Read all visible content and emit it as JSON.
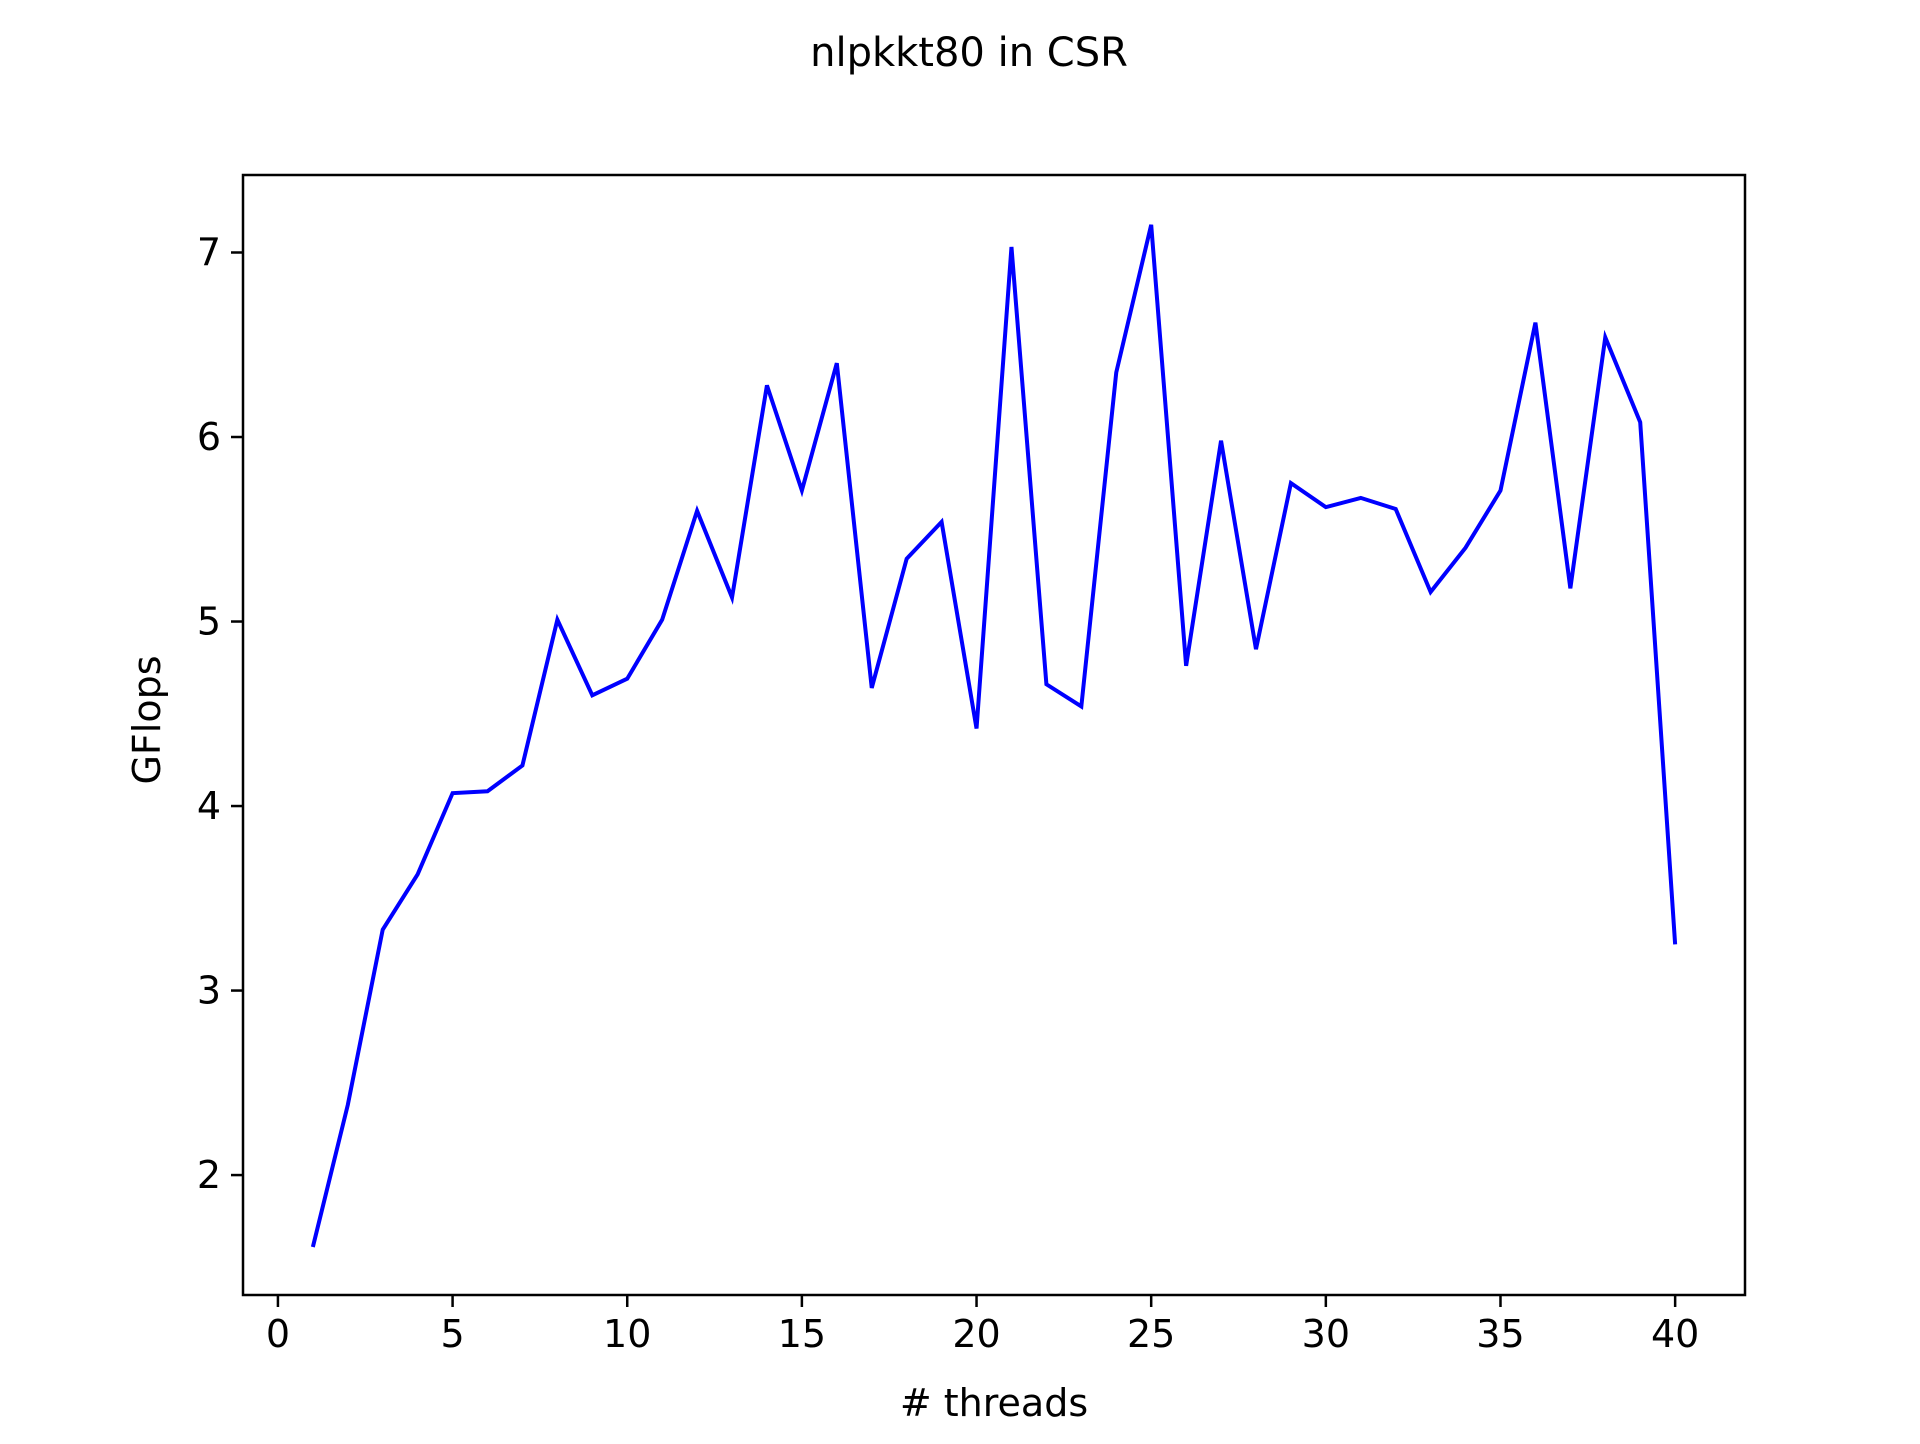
{
  "chart_data": {
    "type": "line",
    "title": "nlpkkt80 in CSR",
    "xlabel": "# threads",
    "ylabel": "GFlops",
    "xlim": [
      -1,
      42
    ],
    "ylim": [
      1.35,
      7.42
    ],
    "xticks": [
      0,
      5,
      10,
      15,
      20,
      25,
      30,
      35,
      40
    ],
    "yticks": [
      2,
      3,
      4,
      5,
      6,
      7
    ],
    "grid": false,
    "legend": "none",
    "series": [
      {
        "color": "#0000ff",
        "x": [
          1,
          2,
          3,
          4,
          5,
          6,
          7,
          8,
          9,
          10,
          11,
          12,
          13,
          14,
          15,
          16,
          17,
          18,
          19,
          20,
          21,
          22,
          23,
          24,
          25,
          26,
          27,
          28,
          29,
          30,
          31,
          32,
          33,
          34,
          35,
          36,
          37,
          38,
          39,
          40
        ],
        "y": [
          1.61,
          2.38,
          3.33,
          3.63,
          4.07,
          4.08,
          4.22,
          5.01,
          4.6,
          4.69,
          5.01,
          5.6,
          5.13,
          6.28,
          5.71,
          6.4,
          4.64,
          5.34,
          5.54,
          4.42,
          7.03,
          4.66,
          4.54,
          6.35,
          7.15,
          4.76,
          5.98,
          4.85,
          5.75,
          5.62,
          5.67,
          5.61,
          5.16,
          5.4,
          5.71,
          6.62,
          5.18,
          6.54,
          6.08,
          3.25
        ]
      }
    ]
  }
}
